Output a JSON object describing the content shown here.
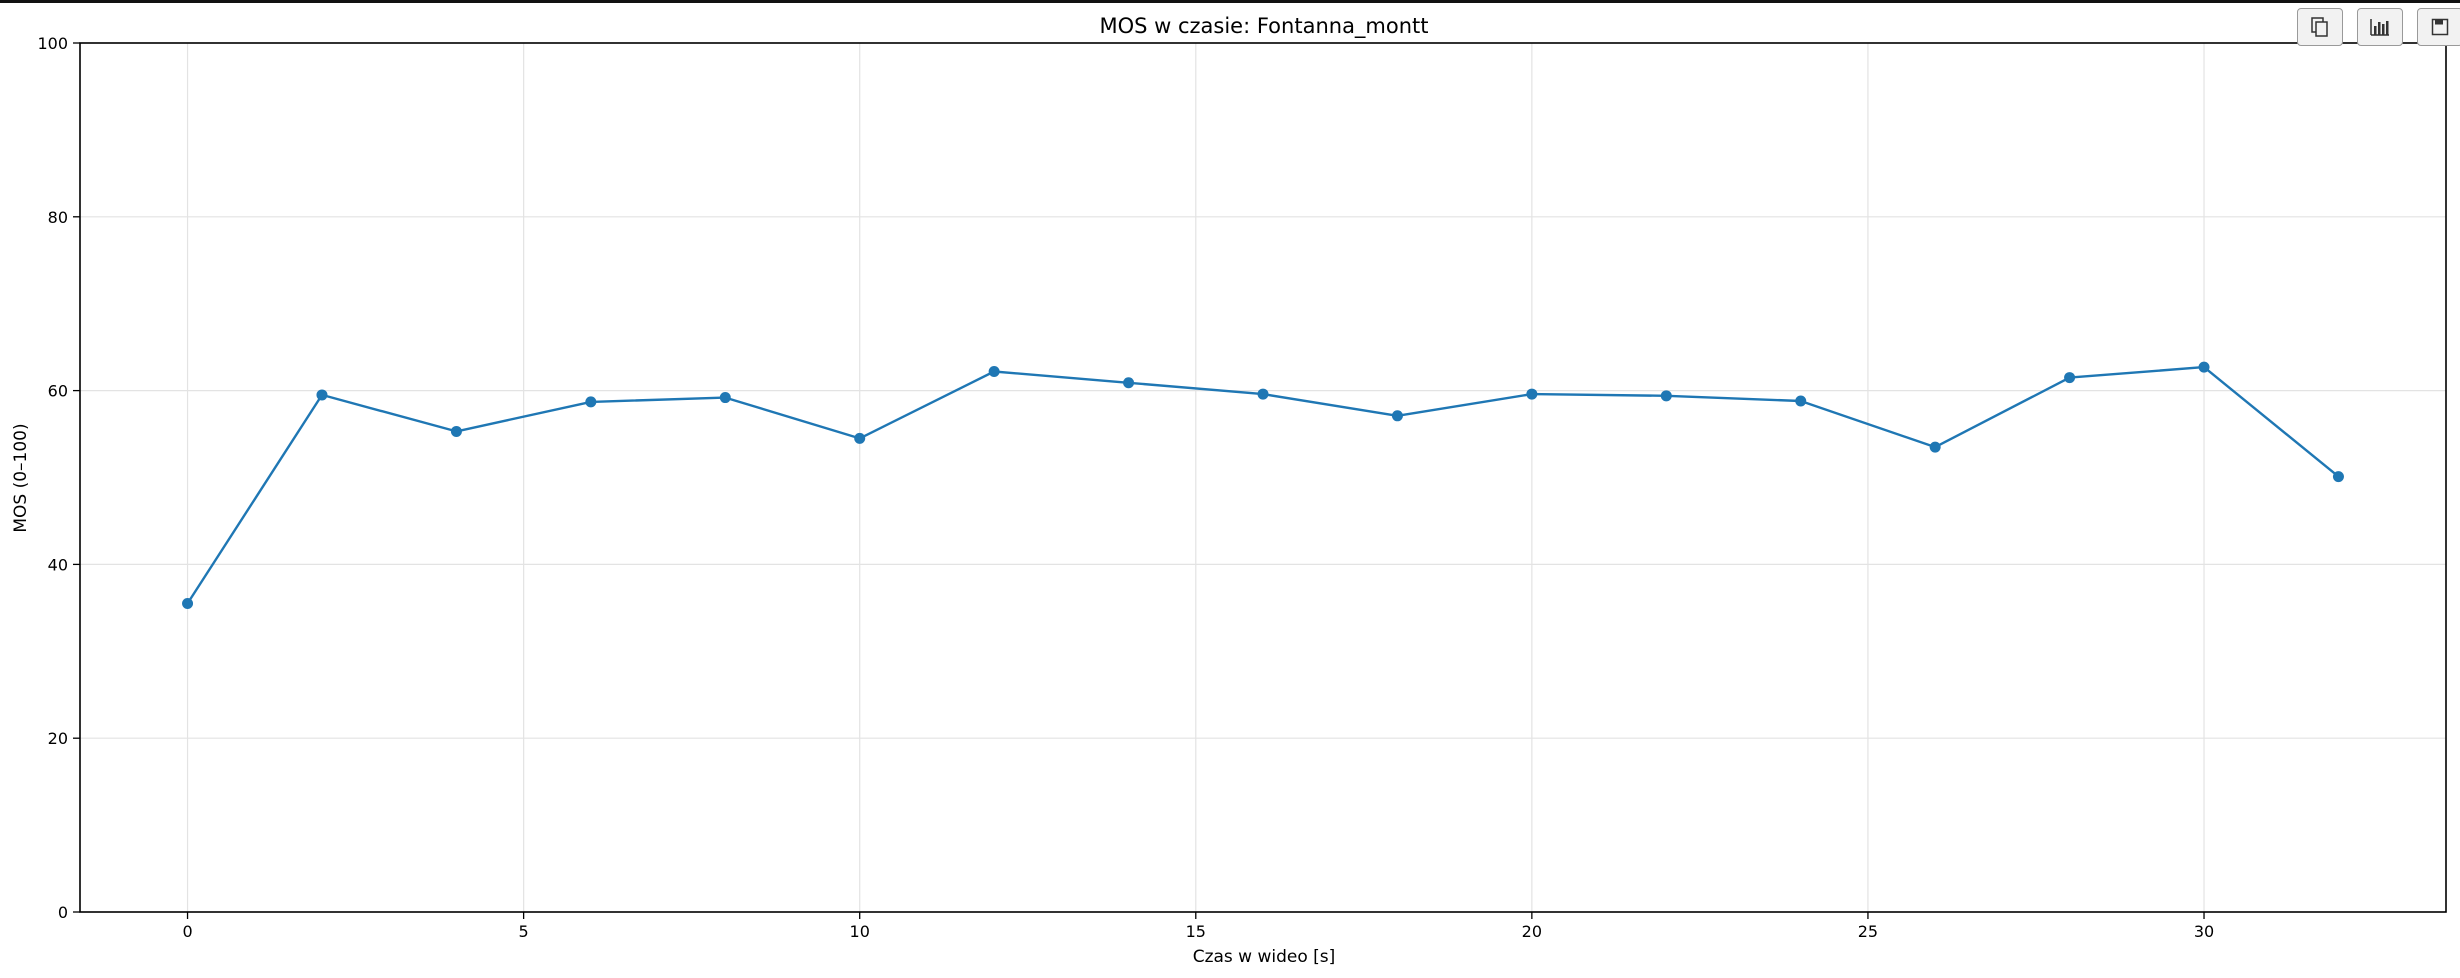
{
  "toolbar": {
    "buttons": [
      {
        "icon": "copy-icon"
      },
      {
        "icon": "bar-chart-icon"
      },
      {
        "icon": "save-icon"
      }
    ]
  },
  "chart_data": {
    "type": "line",
    "title": "MOS w czasie: Fontanna_montt",
    "xlabel": "Czas w wideo [s]",
    "ylabel": "MOS (0–100)",
    "xlim": [
      -1.6,
      33.6
    ],
    "ylim": [
      0,
      100
    ],
    "xticks": [
      0,
      5,
      10,
      15,
      20,
      25,
      30
    ],
    "yticks": [
      0,
      20,
      40,
      60,
      80,
      100
    ],
    "grid": true,
    "marker": "circle",
    "series": [
      {
        "color": "#1f77b4",
        "x": [
          0,
          2,
          4,
          6,
          8,
          10,
          12,
          14,
          16,
          18,
          20,
          22,
          24,
          26,
          28,
          30,
          32
        ],
        "y": [
          35.5,
          59.5,
          55.3,
          58.7,
          59.2,
          54.5,
          62.2,
          60.9,
          59.6,
          57.1,
          59.6,
          59.4,
          58.8,
          53.5,
          61.5,
          62.7,
          50.1
        ]
      }
    ]
  }
}
